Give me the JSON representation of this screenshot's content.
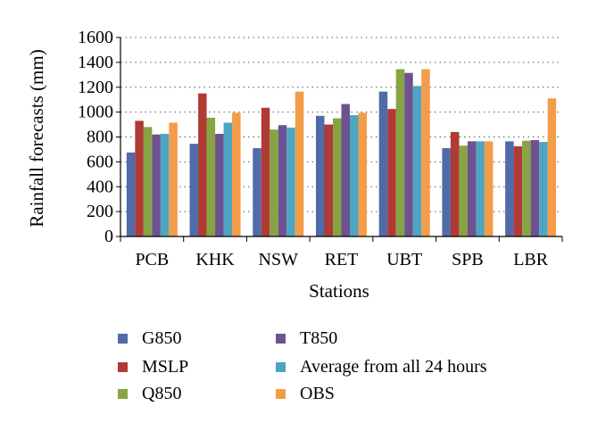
{
  "chart_data": {
    "type": "bar",
    "title": "",
    "xlabel": "Stations",
    "ylabel": "Rainfall forecasts (mm)",
    "ylim": [
      0,
      1600
    ],
    "yticks": [
      0,
      200,
      400,
      600,
      800,
      1000,
      1200,
      1400,
      1600
    ],
    "grid": "horizontal dotted",
    "legend_position": "bottom",
    "categories": [
      "PCB",
      "KHK",
      "NSW",
      "RET",
      "UBT",
      "SPB",
      "LBR"
    ],
    "series": [
      {
        "name": "G850",
        "color": "#4F6BA8",
        "values": [
          675,
          745,
          710,
          970,
          1165,
          710,
          765
        ]
      },
      {
        "name": "MSLP",
        "color": "#B03A36",
        "values": [
          930,
          1150,
          1035,
          900,
          1025,
          840,
          725
        ]
      },
      {
        "name": "Q850",
        "color": "#86A443",
        "values": [
          880,
          955,
          860,
          950,
          1345,
          730,
          770
        ]
      },
      {
        "name": "T850",
        "color": "#6E5190",
        "values": [
          820,
          825,
          895,
          1065,
          1315,
          765,
          775
        ]
      },
      {
        "name": "Average from all 24 hours",
        "color": "#4EA5C2",
        "values": [
          825,
          915,
          875,
          975,
          1210,
          765,
          760
        ]
      },
      {
        "name": "OBS",
        "color": "#F39C49",
        "values": [
          915,
          995,
          1165,
          995,
          1345,
          765,
          1110
        ]
      }
    ]
  }
}
